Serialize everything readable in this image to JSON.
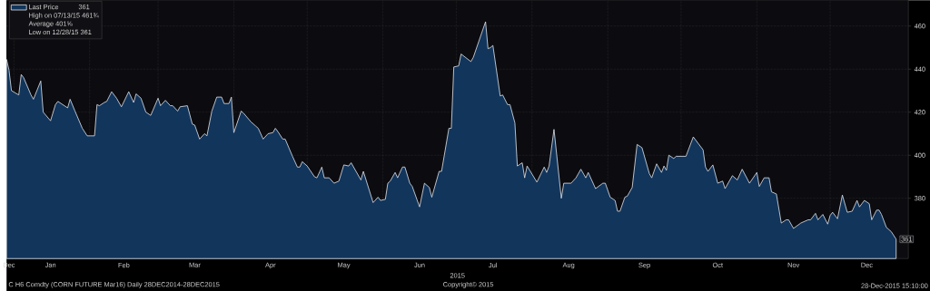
{
  "chart_data": {
    "type": "area",
    "xlabel": "2015",
    "x": [
      "2014-12-29",
      "2014-12-30",
      "2014-12-31",
      "2015-01-03",
      "2015-01-04",
      "2015-01-05",
      "2015-01-08",
      "2015-01-09",
      "2015-01-12",
      "2015-01-13",
      "2015-01-16",
      "2015-01-18",
      "2015-01-19",
      "2015-01-23",
      "2015-01-24",
      "2015-01-26",
      "2015-01-29",
      "2015-01-31",
      "2015-02-03",
      "2015-02-04",
      "2015-02-05",
      "2015-02-07",
      "2015-02-08",
      "2015-02-10",
      "2015-02-12",
      "2015-02-14",
      "2015-02-17",
      "2015-02-19",
      "2015-02-20",
      "2015-02-22",
      "2015-02-24",
      "2015-02-26",
      "2015-03-01",
      "2015-03-02",
      "2015-03-04",
      "2015-03-06",
      "2015-03-07",
      "2015-03-09",
      "2015-03-10",
      "2015-03-13",
      "2015-03-15",
      "2015-03-16",
      "2015-03-18",
      "2015-03-20",
      "2015-03-21",
      "2015-03-23",
      "2015-03-25",
      "2015-03-27",
      "2015-03-28",
      "2015-03-30",
      "2015-03-31",
      "2015-04-01",
      "2015-04-04",
      "2015-04-05",
      "2015-04-08",
      "2015-04-10",
      "2015-04-11",
      "2015-04-13",
      "2015-04-15",
      "2015-04-17",
      "2015-04-18",
      "2015-04-19",
      "2015-04-21",
      "2015-04-22",
      "2015-04-25",
      "2015-04-27",
      "2015-04-28",
      "2015-04-29",
      "2015-05-01",
      "2015-05-04",
      "2015-05-05",
      "2015-05-07",
      "2015-05-08",
      "2015-05-10",
      "2015-05-12",
      "2015-05-14",
      "2015-05-16",
      "2015-05-18",
      "2015-05-19",
      "2015-05-23",
      "2015-05-24",
      "2015-05-28",
      "2015-05-30",
      "2015-05-31",
      "2015-06-02",
      "2015-06-03",
      "2015-06-04",
      "2015-06-06",
      "2015-06-07",
      "2015-06-09",
      "2015-06-10",
      "2015-06-12",
      "2015-06-13",
      "2015-06-16",
      "2015-06-18",
      "2015-06-20",
      "2015-06-21",
      "2015-06-24",
      "2015-06-25",
      "2015-06-28",
      "2015-06-29",
      "2015-06-30",
      "2015-07-02",
      "2015-07-03",
      "2015-07-07",
      "2015-07-08",
      "2015-07-13",
      "2015-07-14",
      "2015-07-15",
      "2015-07-16",
      "2015-07-19",
      "2015-07-20",
      "2015-07-22",
      "2015-07-23",
      "2015-07-25",
      "2015-07-26",
      "2015-07-28",
      "2015-07-29",
      "2015-07-30",
      "2015-08-03",
      "2015-08-06",
      "2015-08-07",
      "2015-08-08",
      "2015-08-10",
      "2015-08-13",
      "2015-08-14",
      "2015-08-17",
      "2015-08-19",
      "2015-08-21",
      "2015-08-23",
      "2015-08-24",
      "2015-08-27",
      "2015-08-30",
      "2015-08-31",
      "2015-09-02",
      "2015-09-04",
      "2015-09-05",
      "2015-09-06",
      "2015-09-08",
      "2015-09-09",
      "2015-09-11",
      "2015-09-13",
      "2015-09-15",
      "2015-09-18",
      "2015-09-19",
      "2015-09-21",
      "2015-09-23",
      "2015-09-24",
      "2015-09-25",
      "2015-09-26",
      "2015-09-28",
      "2015-09-29",
      "2015-10-01",
      "2015-10-03",
      "2015-10-06",
      "2015-10-08",
      "2015-10-10",
      "2015-10-11",
      "2015-10-12",
      "2015-10-14",
      "2015-10-16",
      "2015-10-18",
      "2015-10-19",
      "2015-10-22",
      "2015-10-24",
      "2015-10-26",
      "2015-10-29",
      "2015-11-01",
      "2015-11-02",
      "2015-11-04",
      "2015-11-06",
      "2015-11-07",
      "2015-11-09",
      "2015-11-11",
      "2015-11-13",
      "2015-11-14",
      "2015-11-16",
      "2015-11-19",
      "2015-11-22",
      "2015-11-23",
      "2015-11-25",
      "2015-11-26",
      "2015-11-28",
      "2015-11-30",
      "2015-12-01",
      "2015-12-02",
      "2015-12-04",
      "2015-12-06",
      "2015-12-08",
      "2015-12-10",
      "2015-12-12",
      "2015-12-13",
      "2015-12-15",
      "2015-12-17",
      "2015-12-18",
      "2015-12-20",
      "2015-12-21",
      "2015-12-22",
      "2015-12-24",
      "2015-12-26",
      "2015-12-28"
    ],
    "series": [
      {
        "name": "Last Price",
        "color": "#12355c",
        "values": [
          444.5,
          439.5,
          430,
          428,
          437.5,
          436,
          428,
          426,
          434.5,
          420,
          416,
          423.5,
          425,
          422,
          426,
          420.5,
          412.5,
          409,
          409,
          423.5,
          423,
          424.5,
          425,
          429.5,
          426.5,
          422.5,
          429.5,
          424.5,
          428.5,
          426.5,
          420,
          418.5,
          426.5,
          423,
          425.5,
          423,
          423,
          420.5,
          422.5,
          423,
          414.5,
          414,
          407.5,
          410,
          409,
          420.5,
          427,
          427,
          424,
          424,
          427,
          410.5,
          420.5,
          419.5,
          415.5,
          413.5,
          412.5,
          407.5,
          410,
          410.5,
          412.5,
          411,
          407.5,
          407.5,
          399.5,
          394.5,
          394.5,
          397,
          395,
          390,
          389.5,
          394.5,
          389.5,
          389.5,
          387,
          388,
          395.5,
          395,
          396.5,
          388.5,
          392.5,
          378,
          380.5,
          379,
          379.5,
          387,
          388,
          392,
          389.5,
          394.5,
          394.5,
          387,
          385.5,
          376,
          387,
          385,
          380.5,
          392.5,
          392.5,
          412.5,
          412.5,
          441,
          441.5,
          447,
          443.5,
          445.5,
          462,
          449.5,
          450,
          451,
          427.5,
          428,
          423.5,
          423.5,
          415,
          395,
          396.5,
          389.5,
          395,
          387.5,
          394.5,
          392,
          395,
          412,
          380,
          387,
          387,
          389.5,
          393.5,
          389.5,
          392,
          384.5,
          387,
          387,
          380.5,
          379,
          374,
          374,
          380.5,
          381,
          385,
          405,
          403.5,
          391.5,
          389.5,
          396,
          392,
          395,
          393,
          400,
          398.5,
          399.5,
          399.5,
          399.5,
          408.5,
          405.5,
          402.5,
          394.5,
          392.5,
          395.5,
          387,
          388,
          384.5,
          390.5,
          388.5,
          393.5,
          387,
          392,
          385.5,
          389.5,
          389.5,
          383,
          382,
          368.5,
          370,
          370,
          366,
          368.5,
          370,
          370,
          373,
          370,
          372.5,
          368,
          372,
          373.5,
          370.5,
          381.5,
          373.5,
          374,
          379,
          376,
          379,
          377.5,
          370,
          374.5,
          374.5,
          372.5,
          366.5,
          364.5,
          361
        ]
      }
    ],
    "xlim": [
      "2014-12-29",
      "2016-01-02"
    ],
    "xticks": [
      {
        "value": "2014-12-30",
        "label": "Dec"
      },
      {
        "value": "2015-01-01",
        "label": null
      },
      {
        "value": "2015-01-16",
        "label": "Jan"
      },
      {
        "value": "2015-02-01",
        "label": null
      },
      {
        "value": "2015-02-15",
        "label": "Feb"
      },
      {
        "value": "2015-03-01",
        "label": null
      },
      {
        "value": "2015-03-16",
        "label": "Mar"
      },
      {
        "value": "2015-04-01",
        "label": null
      },
      {
        "value": "2015-04-16",
        "label": "Apr"
      },
      {
        "value": "2015-05-01",
        "label": null
      },
      {
        "value": "2015-05-16",
        "label": "May"
      },
      {
        "value": "2015-06-01",
        "label": null
      },
      {
        "value": "2015-06-16",
        "label": "Jun"
      },
      {
        "value": "2015-07-01",
        "label": null
      },
      {
        "value": "2015-07-16",
        "label": "Jul"
      },
      {
        "value": "2015-08-01",
        "label": null
      },
      {
        "value": "2015-08-16",
        "label": "Aug"
      },
      {
        "value": "2015-09-01",
        "label": null
      },
      {
        "value": "2015-09-16",
        "label": "Sep"
      },
      {
        "value": "2015-10-01",
        "label": null
      },
      {
        "value": "2015-10-16",
        "label": "Oct"
      },
      {
        "value": "2015-11-01",
        "label": null
      },
      {
        "value": "2015-11-16",
        "label": "Nov"
      },
      {
        "value": "2015-12-01",
        "label": null
      },
      {
        "value": "2015-12-16",
        "label": "Dec"
      }
    ],
    "ylim": [
      352,
      472
    ],
    "yticks": [
      {
        "value": 360,
        "label": null
      },
      380,
      400,
      420,
      440,
      460
    ],
    "grid": true,
    "legend": "top left",
    "annotations": [
      {
        "text": "361",
        "x": "2015-12-28",
        "y": 361
      },
      "High on 07/13/15 461¾",
      "Average 401⅝",
      "Low on 12/28/15 361",
      "C H6 Comdty (CORN FUTURE     Mar16)  Daily 28DEC2014-28DEC2015",
      "Copyright© 2015",
      "28-Dec-2015 15:10:00"
    ]
  }
}
